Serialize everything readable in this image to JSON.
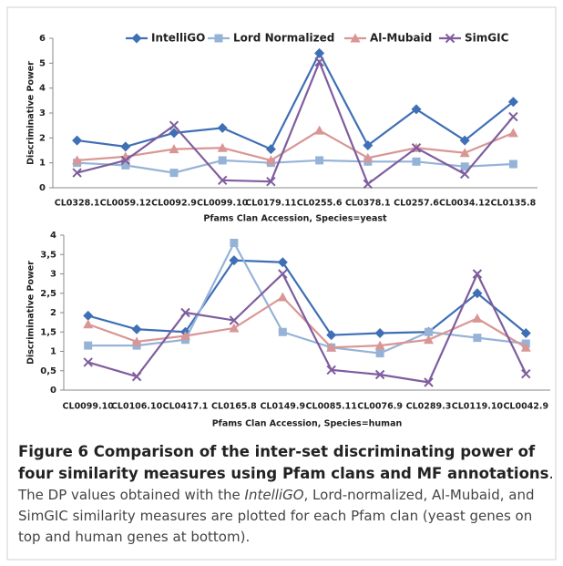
{
  "chart_data": [
    {
      "type": "line",
      "y_label": "Discriminative Power",
      "x_label": "Pfams Clan Accession, Species=yeast",
      "categories": [
        "CL0328.1",
        "CL0059.12",
        "CL0092.9",
        "CL0099.10",
        "CL0179.11",
        "CL0255.6",
        "CL0378.1",
        "CL0257.6",
        "CL0034.12",
        "CL0135.8"
      ],
      "ylim": [
        0,
        6
      ],
      "yticks": [
        0,
        1,
        2,
        3,
        4,
        5,
        6
      ],
      "legend": "top",
      "series": [
        {
          "name": "IntelliGO",
          "color": "#3f6fb5",
          "marker": "diamond",
          "values": [
            1.9,
            1.65,
            2.2,
            2.4,
            1.55,
            5.4,
            1.7,
            3.15,
            1.9,
            3.45
          ]
        },
        {
          "name": "Lord Normalized",
          "color": "#95b3d7",
          "marker": "square",
          "values": [
            1.0,
            0.9,
            0.6,
            1.1,
            1.0,
            1.1,
            1.05,
            1.05,
            0.85,
            0.95
          ]
        },
        {
          "name": "Al-Mubaid",
          "color": "#d99694",
          "marker": "triangle",
          "values": [
            1.1,
            1.25,
            1.55,
            1.6,
            1.1,
            2.3,
            1.2,
            1.6,
            1.4,
            2.2
          ]
        },
        {
          "name": "SimGIC",
          "color": "#7f5d9e",
          "marker": "x",
          "values": [
            0.6,
            1.1,
            2.5,
            0.3,
            0.25,
            5.05,
            0.15,
            1.6,
            0.55,
            2.85
          ]
        }
      ]
    },
    {
      "type": "line",
      "y_label": "Discriminative Power",
      "x_label": "Pfams Clan Accession, Species=human",
      "categories": [
        "CL0099.10",
        "CL0106.10",
        "CL0417.1",
        "CL0165.8",
        "CL0149.9",
        "CL0085.11",
        "CL0076.9",
        "CL0289.3",
        "CL0119.10",
        "CL0042.9"
      ],
      "ylim": [
        0,
        4
      ],
      "yticks": [
        0,
        {
          "value": 0.5,
          "label": "0,5"
        },
        1,
        {
          "value": 1.5,
          "label": "1,5"
        },
        2,
        {
          "value": 2.5,
          "label": "2,5"
        },
        3,
        {
          "value": 3.5,
          "label": "3,5"
        },
        4
      ],
      "series": [
        {
          "color": "#3f6fb5",
          "marker": "diamond",
          "values": [
            1.92,
            1.57,
            1.5,
            3.35,
            3.3,
            1.42,
            1.47,
            1.5,
            2.5,
            1.47
          ]
        },
        {
          "color": "#95b3d7",
          "marker": "square",
          "values": [
            1.15,
            1.15,
            1.3,
            3.8,
            1.5,
            1.1,
            0.95,
            1.5,
            1.35,
            1.2
          ]
        },
        {
          "color": "#d99694",
          "marker": "triangle",
          "values": [
            1.7,
            1.25,
            1.4,
            1.6,
            2.4,
            1.1,
            1.15,
            1.3,
            1.85,
            1.1
          ]
        },
        {
          "color": "#7f5d9e",
          "marker": "x",
          "values": [
            0.72,
            0.35,
            2.0,
            1.8,
            3.0,
            0.52,
            0.4,
            0.2,
            3.0,
            0.42
          ]
        }
      ]
    }
  ],
  "caption": {
    "label": "Figure 6",
    "title": "Comparison of the inter-set discriminating power of four similarity measures using Pfam clans and MF annotations",
    "period": ".",
    "text": [
      "The DP values obtained with the ",
      "IntelliGO",
      ", Lord-normalized, Al-Mubaid, and SimGIC similarity measures are plotted for each Pfam clan (yeast genes on top and human genes at bottom)."
    ]
  }
}
